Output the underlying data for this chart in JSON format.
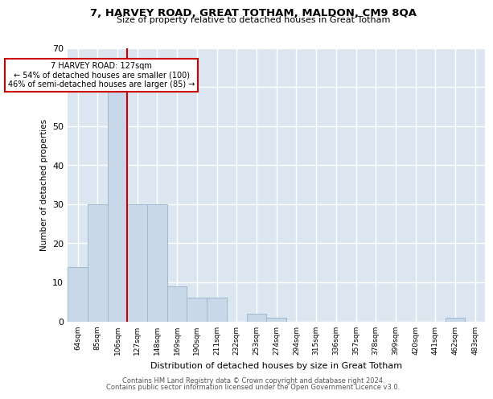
{
  "title1": "7, HARVEY ROAD, GREAT TOTHAM, MALDON, CM9 8QA",
  "title2": "Size of property relative to detached houses in Great Totham",
  "xlabel": "Distribution of detached houses by size in Great Totham",
  "ylabel": "Number of detached properties",
  "bar_labels": [
    "64sqm",
    "85sqm",
    "106sqm",
    "127sqm",
    "148sqm",
    "169sqm",
    "190sqm",
    "211sqm",
    "232sqm",
    "253sqm",
    "274sqm",
    "294sqm",
    "315sqm",
    "336sqm",
    "357sqm",
    "378sqm",
    "399sqm",
    "420sqm",
    "441sqm",
    "462sqm",
    "483sqm"
  ],
  "bar_values": [
    14,
    30,
    59,
    30,
    30,
    9,
    6,
    6,
    0,
    2,
    1,
    0,
    0,
    0,
    0,
    0,
    0,
    0,
    0,
    1,
    0
  ],
  "bar_color": "#c8d8e8",
  "bar_edge_color": "#a0b8cc",
  "vline_color": "#cc0000",
  "annotation_text": "7 HARVEY ROAD: 127sqm\n← 54% of detached houses are smaller (100)\n46% of semi-detached houses are larger (85) →",
  "annotation_box_color": "#ffffff",
  "annotation_box_edge": "#cc0000",
  "ylim": [
    0,
    70
  ],
  "yticks": [
    0,
    10,
    20,
    30,
    40,
    50,
    60,
    70
  ],
  "bg_color": "#dce6f0",
  "grid_color": "#ffffff",
  "footer1": "Contains HM Land Registry data © Crown copyright and database right 2024.",
  "footer2": "Contains public sector information licensed under the Open Government Licence v3.0."
}
